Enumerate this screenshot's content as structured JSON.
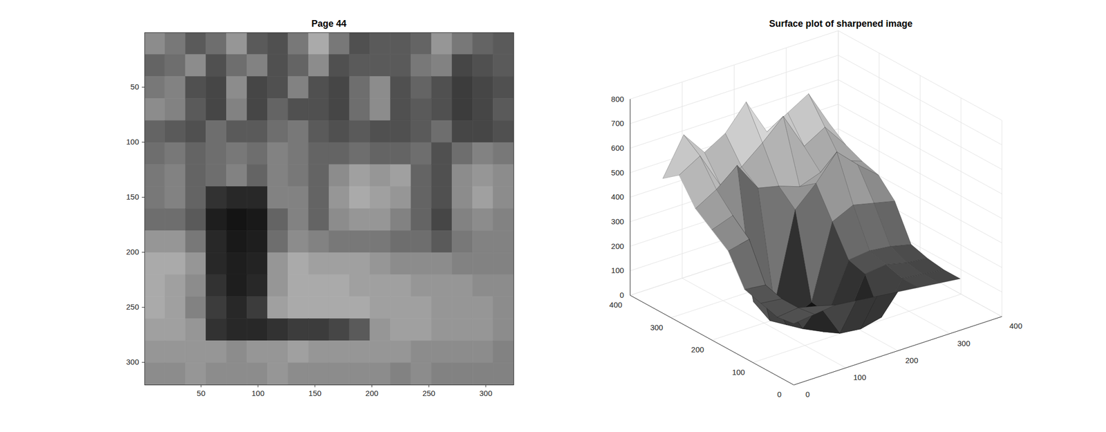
{
  "chart_data": [
    {
      "type": "image",
      "title": "Page 44",
      "color": "gray",
      "xlim": [
        0.5,
        324.5
      ],
      "ylim": [
        0.5,
        320.5
      ],
      "xticks": [
        50,
        100,
        150,
        200,
        250,
        300
      ],
      "yticks": [
        50,
        100,
        150,
        200,
        250,
        300
      ],
      "clim": [
        0,
        255
      ],
      "cells": [
        [
          140,
          120,
          90,
          110,
          150,
          90,
          80,
          120,
          170,
          120,
          80,
          90,
          90,
          100,
          150,
          120,
          100,
          90
        ],
        [
          100,
          110,
          140,
          80,
          110,
          130,
          80,
          100,
          140,
          80,
          90,
          90,
          90,
          120,
          130,
          70,
          80,
          90
        ],
        [
          120,
          130,
          80,
          70,
          140,
          70,
          80,
          130,
          80,
          70,
          110,
          140,
          80,
          100,
          80,
          60,
          70,
          80
        ],
        [
          140,
          130,
          90,
          70,
          130,
          70,
          100,
          80,
          80,
          70,
          110,
          140,
          80,
          90,
          80,
          60,
          70,
          90
        ],
        [
          100,
          90,
          80,
          110,
          90,
          90,
          110,
          120,
          90,
          80,
          90,
          80,
          80,
          90,
          110,
          70,
          70,
          80
        ],
        [
          110,
          120,
          100,
          110,
          120,
          110,
          130,
          120,
          100,
          100,
          110,
          100,
          100,
          110,
          80,
          110,
          130,
          120
        ],
        [
          120,
          130,
          100,
          110,
          130,
          100,
          130,
          120,
          100,
          140,
          160,
          150,
          160,
          100,
          80,
          140,
          150,
          140
        ],
        [
          120,
          130,
          100,
          50,
          40,
          40,
          130,
          130,
          100,
          150,
          170,
          160,
          150,
          100,
          80,
          140,
          160,
          140
        ],
        [
          110,
          110,
          90,
          30,
          20,
          25,
          100,
          130,
          100,
          140,
          150,
          150,
          130,
          100,
          70,
          130,
          140,
          130
        ],
        [
          150,
          150,
          120,
          40,
          25,
          30,
          110,
          140,
          130,
          120,
          120,
          120,
          110,
          110,
          90,
          120,
          130,
          130
        ],
        [
          170,
          170,
          150,
          40,
          30,
          35,
          150,
          170,
          160,
          160,
          160,
          150,
          140,
          140,
          140,
          130,
          130,
          130
        ],
        [
          170,
          160,
          140,
          50,
          30,
          40,
          150,
          170,
          170,
          170,
          160,
          160,
          160,
          150,
          150,
          150,
          140,
          140
        ],
        [
          170,
          160,
          130,
          60,
          40,
          60,
          160,
          170,
          170,
          170,
          170,
          160,
          160,
          160,
          150,
          150,
          150,
          140
        ],
        [
          160,
          160,
          150,
          50,
          40,
          40,
          50,
          60,
          60,
          70,
          90,
          150,
          160,
          160,
          150,
          150,
          150,
          140
        ],
        [
          150,
          150,
          150,
          150,
          140,
          150,
          150,
          160,
          150,
          150,
          150,
          150,
          150,
          140,
          140,
          140,
          140,
          130
        ],
        [
          140,
          140,
          150,
          140,
          140,
          140,
          150,
          140,
          140,
          140,
          140,
          140,
          130,
          140,
          130,
          130,
          130,
          130
        ]
      ]
    },
    {
      "type": "surface",
      "title": "Surface plot of sharpened image",
      "color": "gray",
      "grid": true,
      "xlim": [
        0,
        400
      ],
      "ylim": [
        0,
        400
      ],
      "zlim": [
        0,
        800
      ],
      "xticks": [
        0,
        100,
        200,
        300,
        400
      ],
      "yticks": [
        0,
        100,
        200,
        300,
        400
      ],
      "zticks": [
        0,
        100,
        200,
        300,
        400,
        500,
        600,
        700,
        800
      ],
      "x": [
        0,
        40,
        80,
        120,
        160,
        200,
        240,
        280,
        320
      ],
      "y": [
        0,
        40,
        80,
        120,
        160,
        200,
        240,
        280,
        320
      ],
      "z": [
        [
          250,
          260,
          270,
          260,
          250,
          240,
          230,
          220,
          210
        ],
        [
          240,
          250,
          230,
          90,
          80,
          100,
          230,
          220,
          210
        ],
        [
          260,
          250,
          100,
          60,
          60,
          240,
          250,
          230,
          220
        ],
        [
          280,
          270,
          80,
          50,
          70,
          260,
          270,
          260,
          240
        ],
        [
          400,
          420,
          60,
          40,
          80,
          380,
          420,
          400,
          380
        ],
        [
          450,
          480,
          100,
          60,
          420,
          500,
          600,
          520,
          450
        ],
        [
          500,
          550,
          620,
          500,
          480,
          450,
          480,
          500,
          470
        ],
        [
          600,
          650,
          500,
          550,
          620,
          700,
          550,
          600,
          500
        ],
        [
          550,
          700,
          600,
          650,
          750,
          600,
          650,
          700,
          550
        ]
      ]
    }
  ]
}
